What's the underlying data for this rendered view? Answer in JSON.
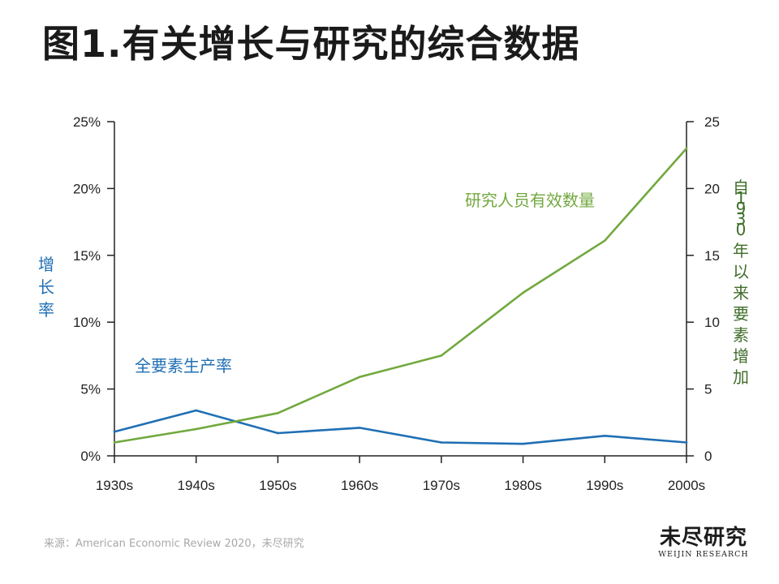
{
  "title": "图1.有关增长与研究的综合数据",
  "source": "来源：American Economic Review 2020，未尽研究",
  "brand": {
    "name_cn": "未尽研究",
    "name_en": "WEIJIN RESEARCH"
  },
  "colors": {
    "tfp": "#1f6fb4",
    "researchers": "#72a83e",
    "right_axis_title": "#3f6e2a",
    "axis": "#222222"
  },
  "chart_data": {
    "type": "line",
    "categories": [
      "1930s",
      "1940s",
      "1950s",
      "1960s",
      "1970s",
      "1980s",
      "1990s",
      "2000s"
    ],
    "y_left": {
      "title": "增长率",
      "ylim": [
        0,
        25
      ],
      "ticks": [
        0,
        5,
        10,
        15,
        20,
        25
      ],
      "tick_labels": [
        "0%",
        "5%",
        "10%",
        "15%",
        "20%",
        "25%"
      ]
    },
    "y_right": {
      "title": "自1930年以来要素增加",
      "ylim": [
        0,
        25
      ],
      "ticks": [
        0,
        5,
        10,
        15,
        20,
        25
      ],
      "tick_labels": [
        "0",
        "5",
        "10",
        "15",
        "20",
        "25"
      ]
    },
    "series": [
      {
        "name": "全要素生产率",
        "axis": "left",
        "values": [
          1.8,
          3.4,
          1.7,
          2.1,
          1.0,
          0.9,
          1.5,
          1.0
        ]
      },
      {
        "name": "研究人员有效数量",
        "axis": "right",
        "values": [
          1.0,
          2.0,
          3.2,
          5.9,
          7.5,
          12.2,
          16.1,
          23.0
        ]
      }
    ],
    "grid": false,
    "legend": "inline labels"
  }
}
